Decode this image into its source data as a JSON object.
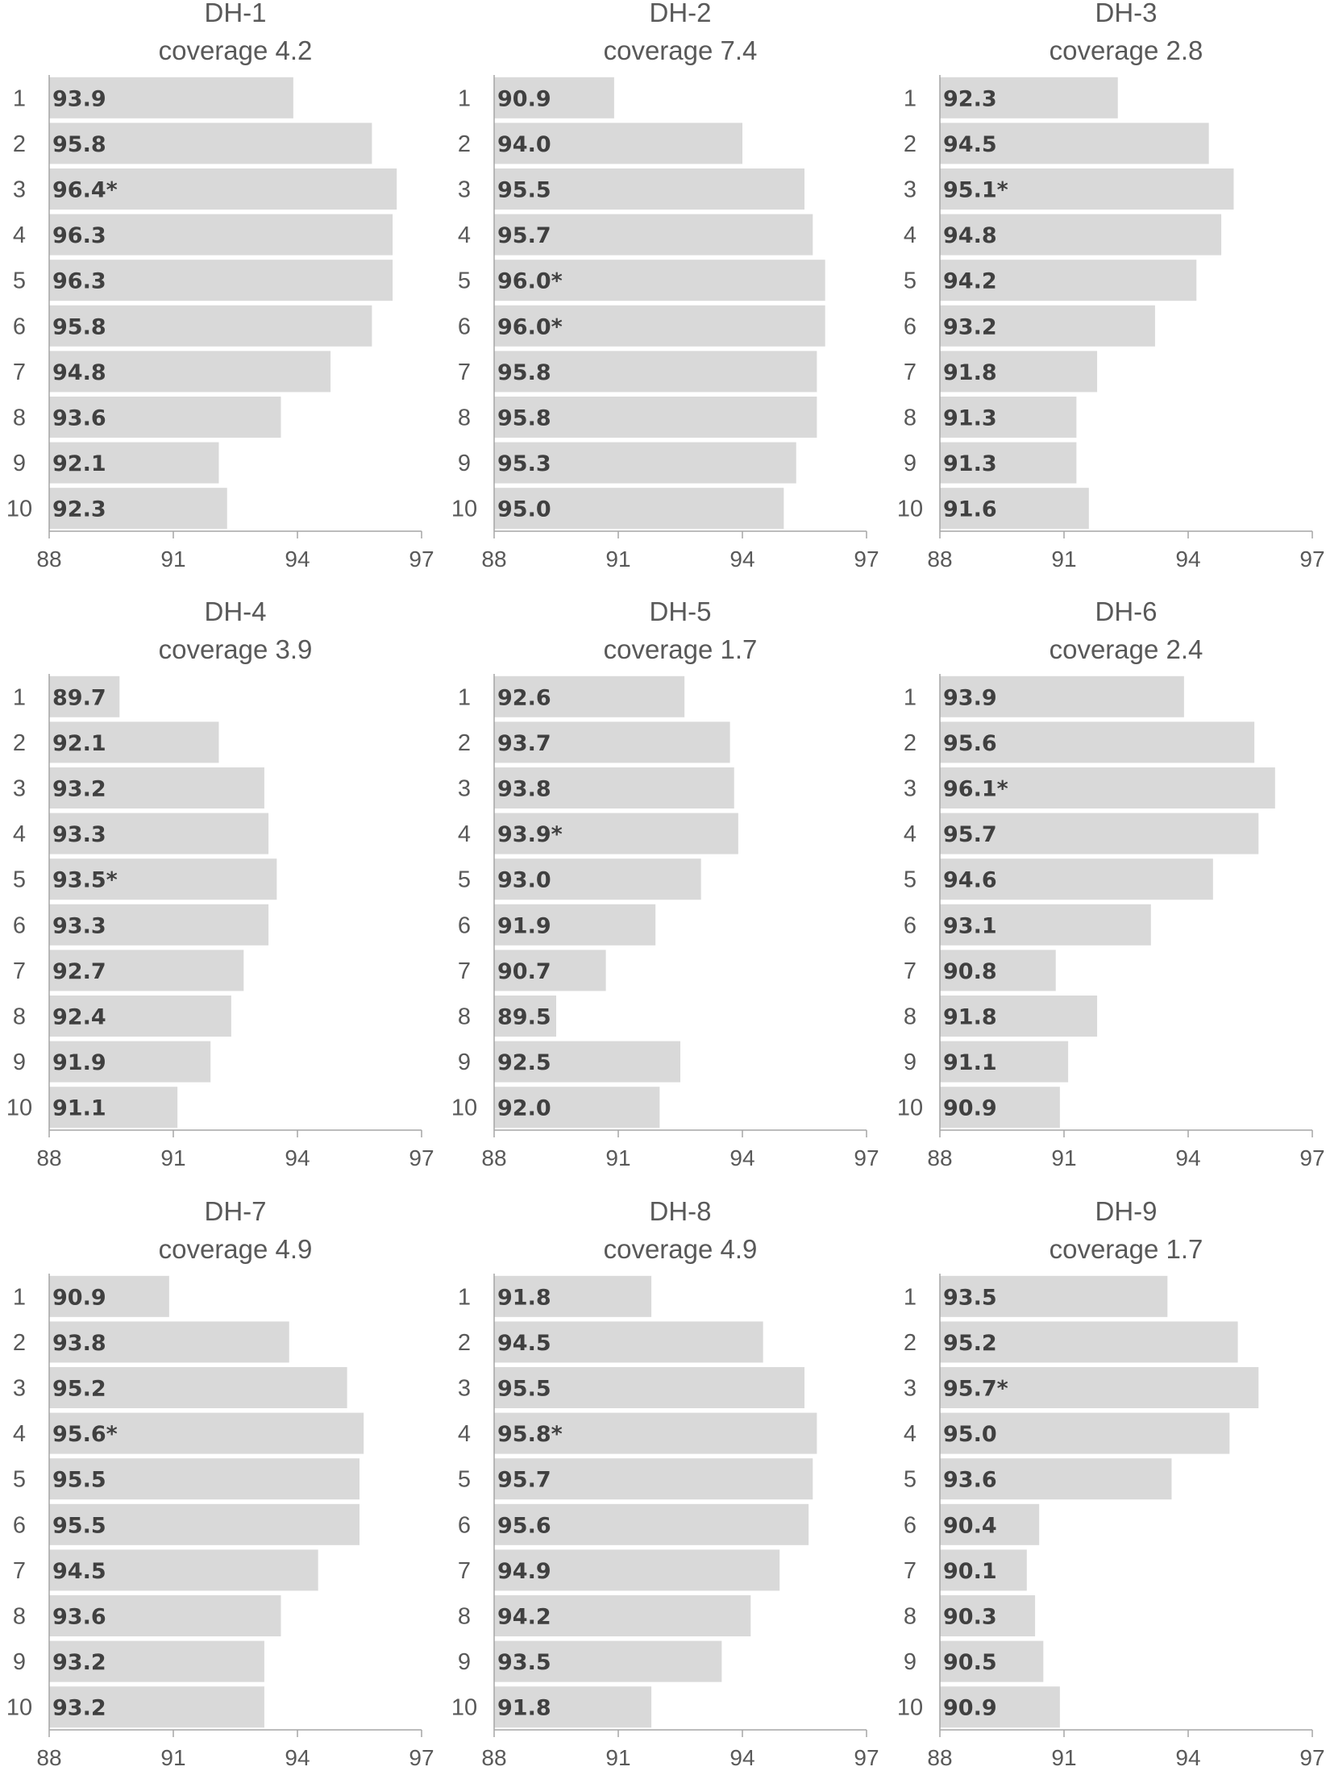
{
  "chart_data": [
    {
      "type": "bar",
      "title": "DH-1",
      "subtitle": "coverage 4.2",
      "categories": [
        "1",
        "2",
        "3",
        "4",
        "5",
        "6",
        "7",
        "8",
        "9",
        "10"
      ],
      "values": [
        93.9,
        95.8,
        96.4,
        96.3,
        96.3,
        95.8,
        94.8,
        93.6,
        92.1,
        92.3
      ],
      "labels": [
        "93.9",
        "95.8",
        "96.4*",
        "96.3",
        "96.3",
        "95.8",
        "94.8",
        "93.6",
        "92.1",
        "92.3"
      ],
      "xlim": [
        88,
        97
      ],
      "xticks": [
        "88",
        "91",
        "94",
        "97"
      ],
      "orientation": "horizontal",
      "grid": false
    },
    {
      "type": "bar",
      "title": "DH-2",
      "subtitle": "coverage 7.4",
      "categories": [
        "1",
        "2",
        "3",
        "4",
        "5",
        "6",
        "7",
        "8",
        "9",
        "10"
      ],
      "values": [
        90.9,
        94.0,
        95.5,
        95.7,
        96.0,
        96.0,
        95.8,
        95.8,
        95.3,
        95.0
      ],
      "labels": [
        "90.9",
        "94.0",
        "95.5",
        "95.7",
        "96.0*",
        "96.0*",
        "95.8",
        "95.8",
        "95.3",
        "95.0"
      ],
      "xlim": [
        88,
        97
      ],
      "xticks": [
        "88",
        "91",
        "94",
        "97"
      ],
      "orientation": "horizontal",
      "grid": false
    },
    {
      "type": "bar",
      "title": "DH-3",
      "subtitle": "coverage 2.8",
      "categories": [
        "1",
        "2",
        "3",
        "4",
        "5",
        "6",
        "7",
        "8",
        "9",
        "10"
      ],
      "values": [
        92.3,
        94.5,
        95.1,
        94.8,
        94.2,
        93.2,
        91.8,
        91.3,
        91.3,
        91.6
      ],
      "labels": [
        "92.3",
        "94.5",
        "95.1*",
        "94.8",
        "94.2",
        "93.2",
        "91.8",
        "91.3",
        "91.3",
        "91.6"
      ],
      "xlim": [
        88,
        97
      ],
      "xticks": [
        "88",
        "91",
        "94",
        "97"
      ],
      "orientation": "horizontal",
      "grid": false
    },
    {
      "type": "bar",
      "title": "DH-4",
      "subtitle": "coverage 3.9",
      "categories": [
        "1",
        "2",
        "3",
        "4",
        "5",
        "6",
        "7",
        "8",
        "9",
        "10"
      ],
      "values": [
        89.7,
        92.1,
        93.2,
        93.3,
        93.5,
        93.3,
        92.7,
        92.4,
        91.9,
        91.1
      ],
      "labels": [
        "89.7",
        "92.1",
        "93.2",
        "93.3",
        "93.5*",
        "93.3",
        "92.7",
        "92.4",
        "91.9",
        "91.1"
      ],
      "xlim": [
        88,
        97
      ],
      "xticks": [
        "88",
        "91",
        "94",
        "97"
      ],
      "orientation": "horizontal",
      "grid": false
    },
    {
      "type": "bar",
      "title": "DH-5",
      "subtitle": "coverage 1.7",
      "categories": [
        "1",
        "2",
        "3",
        "4",
        "5",
        "6",
        "7",
        "8",
        "9",
        "10"
      ],
      "values": [
        92.6,
        93.7,
        93.8,
        93.9,
        93.0,
        91.9,
        90.7,
        89.5,
        92.5,
        92.0
      ],
      "labels": [
        "92.6",
        "93.7",
        "93.8",
        "93.9*",
        "93.0",
        "91.9",
        "90.7",
        "89.5",
        "92.5",
        "92.0"
      ],
      "xlim": [
        88,
        97
      ],
      "xticks": [
        "88",
        "91",
        "94",
        "97"
      ],
      "orientation": "horizontal",
      "grid": false
    },
    {
      "type": "bar",
      "title": "DH-6",
      "subtitle": "coverage 2.4",
      "categories": [
        "1",
        "2",
        "3",
        "4",
        "5",
        "6",
        "7",
        "8",
        "9",
        "10"
      ],
      "values": [
        93.9,
        95.6,
        96.1,
        95.7,
        94.6,
        93.1,
        90.8,
        91.8,
        91.1,
        90.9
      ],
      "labels": [
        "93.9",
        "95.6",
        "96.1*",
        "95.7",
        "94.6",
        "93.1",
        "90.8",
        "91.8",
        "91.1",
        "90.9"
      ],
      "xlim": [
        88,
        97
      ],
      "xticks": [
        "88",
        "91",
        "94",
        "97"
      ],
      "orientation": "horizontal",
      "grid": false
    },
    {
      "type": "bar",
      "title": "DH-7",
      "subtitle": "coverage 4.9",
      "categories": [
        "1",
        "2",
        "3",
        "4",
        "5",
        "6",
        "7",
        "8",
        "9",
        "10"
      ],
      "values": [
        90.9,
        93.8,
        95.2,
        95.6,
        95.5,
        95.5,
        94.5,
        93.6,
        93.2,
        93.2
      ],
      "labels": [
        "90.9",
        "93.8",
        "95.2",
        "95.6*",
        "95.5",
        "95.5",
        "94.5",
        "93.6",
        "93.2",
        "93.2"
      ],
      "xlim": [
        88,
        97
      ],
      "xticks": [
        "88",
        "91",
        "94",
        "97"
      ],
      "orientation": "horizontal",
      "grid": false
    },
    {
      "type": "bar",
      "title": "DH-8",
      "subtitle": "coverage 4.9",
      "categories": [
        "1",
        "2",
        "3",
        "4",
        "5",
        "6",
        "7",
        "8",
        "9",
        "10"
      ],
      "values": [
        91.8,
        94.5,
        95.5,
        95.8,
        95.7,
        95.6,
        94.9,
        94.2,
        93.5,
        91.8
      ],
      "labels": [
        "91.8",
        "94.5",
        "95.5",
        "95.8*",
        "95.7",
        "95.6",
        "94.9",
        "94.2",
        "93.5",
        "91.8"
      ],
      "xlim": [
        88,
        97
      ],
      "xticks": [
        "88",
        "91",
        "94",
        "97"
      ],
      "orientation": "horizontal",
      "grid": false
    },
    {
      "type": "bar",
      "title": "DH-9",
      "subtitle": "coverage 1.7",
      "categories": [
        "1",
        "2",
        "3",
        "4",
        "5",
        "6",
        "7",
        "8",
        "9",
        "10"
      ],
      "values": [
        93.5,
        95.2,
        95.7,
        95.0,
        93.6,
        90.4,
        90.1,
        90.3,
        90.5,
        90.9
      ],
      "labels": [
        "93.5",
        "95.2",
        "95.7*",
        "95.0",
        "93.6",
        "90.4",
        "90.1",
        "90.3",
        "90.5",
        "90.9"
      ],
      "xlim": [
        88,
        97
      ],
      "xticks": [
        "88",
        "91",
        "94",
        "97"
      ],
      "orientation": "horizontal",
      "grid": false
    }
  ],
  "colors": {
    "bar": "#d9d9d9",
    "text": "#595959",
    "label": "#404040",
    "axis": "#a6a6a6"
  }
}
